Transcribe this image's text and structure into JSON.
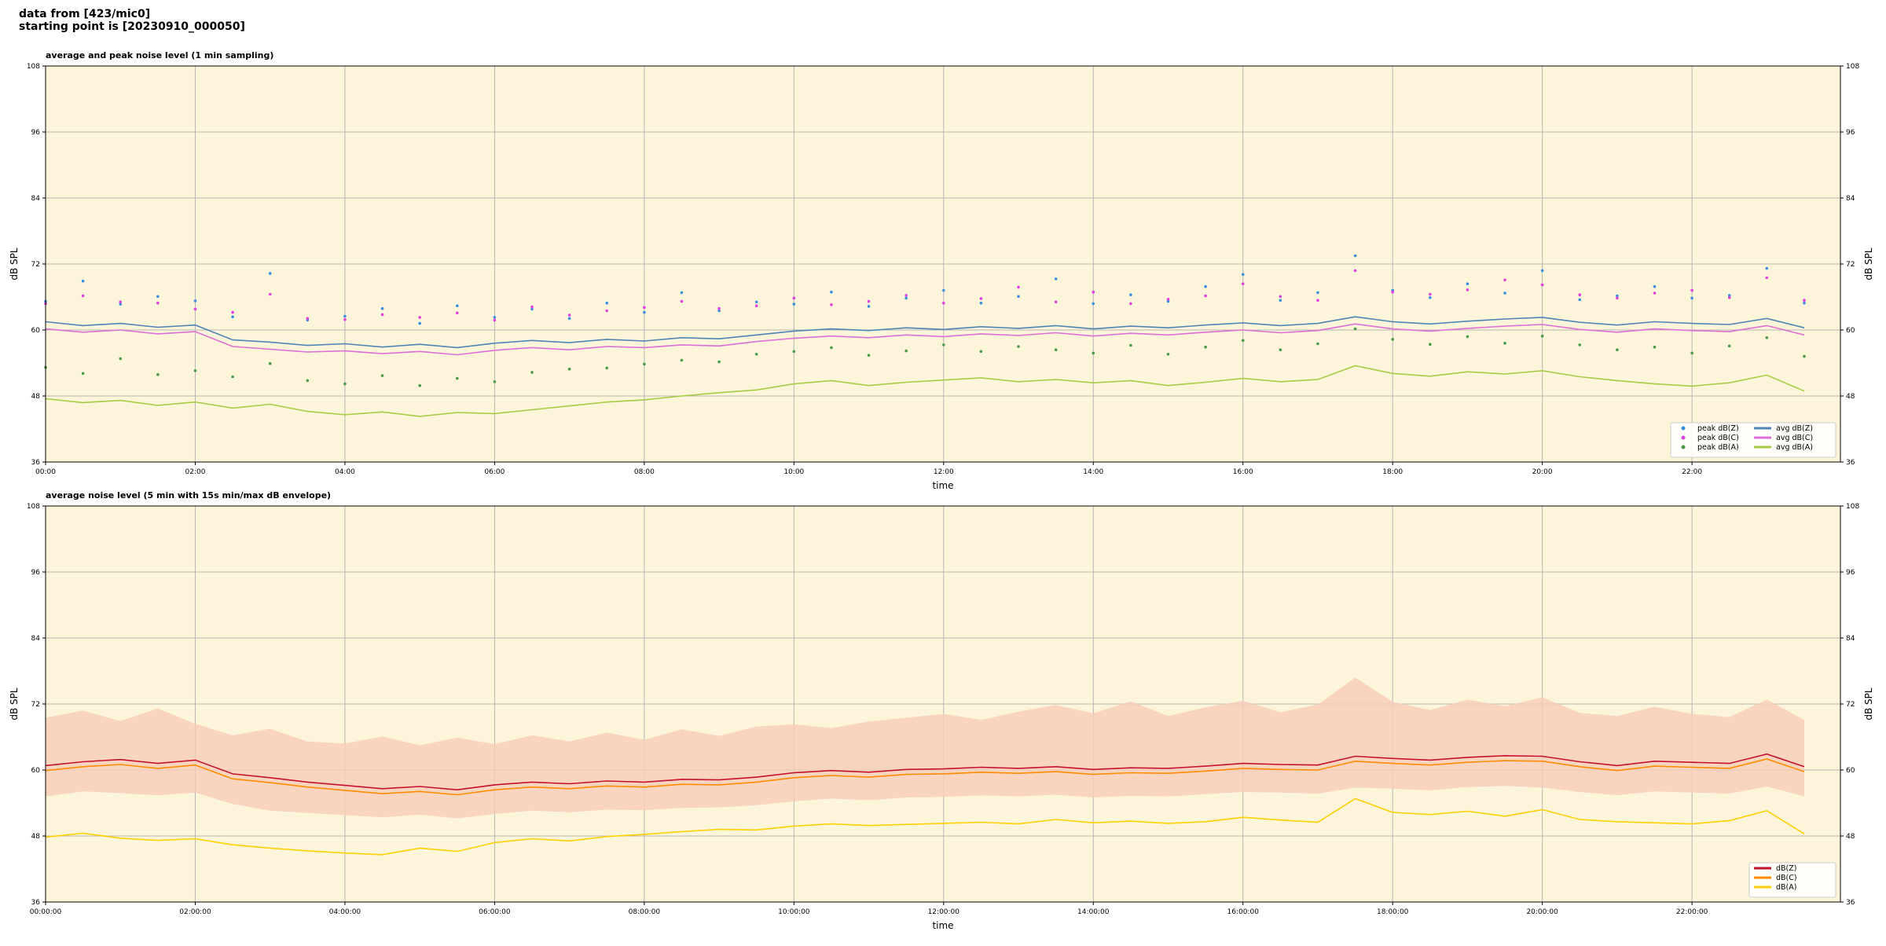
{
  "header": {
    "line1": "data from [423/mic0]",
    "line2": "starting point is [20230910_000050]"
  },
  "chart_data": [
    {
      "type": "line",
      "title": "average and peak noise level (1 min sampling)",
      "x_label": "time",
      "y_label": "dB SPL",
      "background": "#fdf5d9",
      "grid": true,
      "legend": "lower right",
      "legend_columns": 2,
      "xlim": [
        "00:00",
        "23:59"
      ],
      "ylim": [
        36,
        108
      ],
      "yticks": [
        36,
        48,
        60,
        72,
        84,
        96,
        108
      ],
      "xticks": [
        "00:00",
        "02:00",
        "04:00",
        "06:00",
        "08:00",
        "10:00",
        "12:00",
        "14:00",
        "16:00",
        "18:00",
        "20:00",
        "22:00"
      ],
      "x": [
        "00:00",
        "00:30",
        "01:00",
        "01:30",
        "02:00",
        "02:30",
        "03:00",
        "03:30",
        "04:00",
        "04:30",
        "05:00",
        "05:30",
        "06:00",
        "06:30",
        "07:00",
        "07:30",
        "08:00",
        "08:30",
        "09:00",
        "09:30",
        "10:00",
        "10:30",
        "11:00",
        "11:30",
        "12:00",
        "12:30",
        "13:00",
        "13:30",
        "14:00",
        "14:30",
        "15:00",
        "15:30",
        "16:00",
        "16:30",
        "17:00",
        "17:30",
        "18:00",
        "18:30",
        "19:00",
        "19:30",
        "20:00",
        "20:30",
        "21:00",
        "21:30",
        "22:00",
        "22:30",
        "23:00",
        "23:30"
      ],
      "series": [
        {
          "name": "peak dB(Z)",
          "style": "points",
          "color": "#3a8fe0",
          "values": [
            65.2,
            68.9,
            64.7,
            66.1,
            65.3,
            62.4,
            70.3,
            61.8,
            62.5,
            63.9,
            61.2,
            64.4,
            62.3,
            63.8,
            62.1,
            64.9,
            63.2,
            66.8,
            63.5,
            65.1,
            64.7,
            66.9,
            64.3,
            65.8,
            67.2,
            64.9,
            66.1,
            69.3,
            64.8,
            66.4,
            65.2,
            67.9,
            70.1,
            65.4,
            66.8,
            73.5,
            67.2,
            65.9,
            68.4,
            66.7,
            70.8,
            65.5,
            66.2,
            67.9,
            65.8,
            66.3,
            71.2,
            64.9
          ]
        },
        {
          "name": "peak dB(C)",
          "style": "points",
          "color": "#e040e0",
          "values": [
            64.8,
            66.2,
            65.1,
            64.9,
            63.8,
            63.2,
            66.5,
            62.1,
            61.9,
            62.8,
            62.3,
            63.1,
            61.8,
            64.2,
            62.7,
            63.5,
            64.1,
            65.2,
            63.9,
            64.4,
            65.8,
            64.6,
            65.2,
            66.3,
            64.9,
            65.7,
            67.8,
            65.1,
            66.9,
            64.8,
            65.6,
            66.2,
            68.4,
            66.1,
            65.4,
            70.8,
            66.9,
            66.5,
            67.3,
            69.1,
            68.2,
            66.4,
            65.8,
            66.7,
            67.2,
            65.9,
            69.5,
            65.4
          ]
        },
        {
          "name": "peak dB(A)",
          "style": "points",
          "color": "#4a9a4a",
          "values": [
            53.2,
            52.1,
            54.8,
            51.9,
            52.6,
            51.5,
            53.9,
            50.8,
            50.2,
            51.7,
            49.9,
            51.2,
            50.6,
            52.3,
            52.9,
            53.1,
            53.8,
            54.5,
            54.2,
            55.6,
            56.1,
            56.8,
            55.4,
            56.2,
            57.3,
            56.1,
            57.0,
            56.4,
            55.8,
            57.2,
            55.6,
            56.9,
            58.1,
            56.4,
            57.5,
            60.2,
            58.3,
            57.4,
            58.8,
            57.6,
            58.9,
            57.3,
            56.4,
            56.9,
            55.8,
            57.1,
            58.6,
            55.2
          ]
        },
        {
          "name": "avg dB(Z)",
          "style": "line",
          "color": "#4f84b5",
          "values": [
            61.5,
            60.8,
            61.2,
            60.5,
            60.9,
            58.2,
            57.8,
            57.2,
            57.5,
            56.9,
            57.4,
            56.8,
            57.6,
            58.1,
            57.7,
            58.3,
            58.0,
            58.6,
            58.4,
            59.1,
            59.8,
            60.2,
            59.9,
            60.4,
            60.1,
            60.6,
            60.3,
            60.8,
            60.2,
            60.7,
            60.4,
            60.9,
            61.3,
            60.8,
            61.2,
            62.4,
            61.5,
            61.1,
            61.6,
            62.0,
            62.3,
            61.4,
            60.9,
            61.5,
            61.2,
            61.0,
            62.1,
            60.4
          ]
        },
        {
          "name": "avg dB(C)",
          "style": "line",
          "color": "#de6fd6",
          "values": [
            60.2,
            59.6,
            60.0,
            59.3,
            59.7,
            57.0,
            56.5,
            56.0,
            56.2,
            55.7,
            56.1,
            55.5,
            56.3,
            56.8,
            56.4,
            57.0,
            56.8,
            57.3,
            57.1,
            57.9,
            58.5,
            58.9,
            58.6,
            59.1,
            58.8,
            59.3,
            59.0,
            59.5,
            58.9,
            59.4,
            59.1,
            59.6,
            60.0,
            59.5,
            59.9,
            61.1,
            60.2,
            59.8,
            60.3,
            60.7,
            61.0,
            60.1,
            59.6,
            60.2,
            59.9,
            59.7,
            60.8,
            59.1
          ]
        },
        {
          "name": "avg dB(A)",
          "style": "line",
          "color": "#a6cc45",
          "values": [
            47.5,
            46.8,
            47.2,
            46.3,
            46.9,
            45.8,
            46.5,
            45.2,
            44.6,
            45.1,
            44.3,
            45.0,
            44.8,
            45.5,
            46.2,
            46.9,
            47.3,
            48.0,
            48.6,
            49.1,
            50.2,
            50.8,
            49.9,
            50.5,
            50.9,
            51.3,
            50.6,
            51.0,
            50.4,
            50.8,
            49.9,
            50.5,
            51.2,
            50.6,
            51.0,
            53.5,
            52.1,
            51.6,
            52.4,
            52.0,
            52.6,
            51.5,
            50.8,
            50.2,
            49.8,
            50.4,
            51.8,
            48.9
          ]
        }
      ]
    },
    {
      "type": "line",
      "title": "average noise level (5 min with 15s min/max dB envelope)",
      "x_label": "time",
      "y_label": "dB SPL",
      "background": "#fdf5d9",
      "grid": true,
      "legend": "lower right",
      "legend_columns": 1,
      "xlim": [
        "00:00:00",
        "23:59:00"
      ],
      "ylim": [
        36,
        108
      ],
      "yticks": [
        36,
        48,
        60,
        72,
        84,
        96,
        108
      ],
      "xticks": [
        "00:00:00",
        "02:00:00",
        "04:00:00",
        "06:00:00",
        "08:00:00",
        "10:00:00",
        "12:00:00",
        "14:00:00",
        "16:00:00",
        "18:00:00",
        "20:00:00",
        "22:00:00"
      ],
      "x": [
        "00:00:00",
        "00:30:00",
        "01:00:00",
        "01:30:00",
        "02:00:00",
        "02:30:00",
        "03:00:00",
        "03:30:00",
        "04:00:00",
        "04:30:00",
        "05:00:00",
        "05:30:00",
        "06:00:00",
        "06:30:00",
        "07:00:00",
        "07:30:00",
        "08:00:00",
        "08:30:00",
        "09:00:00",
        "09:30:00",
        "10:00:00",
        "10:30:00",
        "11:00:00",
        "11:30:00",
        "12:00:00",
        "12:30:00",
        "13:00:00",
        "13:30:00",
        "14:00:00",
        "14:30:00",
        "15:00:00",
        "15:30:00",
        "16:00:00",
        "16:30:00",
        "17:00:00",
        "17:30:00",
        "18:00:00",
        "18:30:00",
        "19:00:00",
        "19:30:00",
        "20:00:00",
        "20:30:00",
        "21:00:00",
        "21:30:00",
        "22:00:00",
        "22:30:00",
        "23:00:00",
        "23:30:00"
      ],
      "envelope": {
        "color": "#f7cdb9",
        "high": [
          69.5,
          70.8,
          68.9,
          71.2,
          68.4,
          66.3,
          67.5,
          65.2,
          64.8,
          66.1,
          64.5,
          65.9,
          64.7,
          66.3,
          65.2,
          66.8,
          65.5,
          67.4,
          66.2,
          67.9,
          68.3,
          67.6,
          68.8,
          69.5,
          70.2,
          69.1,
          70.6,
          71.8,
          70.3,
          72.5,
          69.8,
          71.4,
          72.6,
          70.5,
          71.9,
          76.8,
          72.4,
          70.9,
          72.8,
          71.6,
          73.2,
          70.4,
          69.8,
          71.5,
          70.2,
          69.6,
          72.8,
          69.1
        ],
        "low": [
          55.2,
          56.1,
          55.8,
          55.4,
          55.9,
          53.8,
          52.6,
          52.2,
          51.8,
          51.4,
          51.9,
          51.2,
          52.0,
          52.6,
          52.3,
          52.8,
          52.7,
          53.1,
          53.2,
          53.6,
          54.3,
          54.8,
          54.5,
          55.0,
          55.1,
          55.4,
          55.2,
          55.5,
          55.0,
          55.3,
          55.2,
          55.6,
          56.0,
          55.9,
          55.7,
          56.8,
          56.6,
          56.3,
          56.9,
          57.1,
          56.8,
          56.0,
          55.4,
          56.1,
          55.9,
          55.7,
          57.0,
          55.2
        ]
      },
      "series": [
        {
          "name": "dB(Z)",
          "style": "line",
          "color": "#c8102e",
          "values": [
            60.8,
            61.5,
            61.9,
            61.2,
            61.8,
            59.3,
            58.6,
            57.8,
            57.2,
            56.6,
            57.0,
            56.4,
            57.3,
            57.8,
            57.5,
            58.0,
            57.8,
            58.3,
            58.2,
            58.7,
            59.5,
            59.9,
            59.6,
            60.1,
            60.2,
            60.5,
            60.3,
            60.6,
            60.1,
            60.4,
            60.3,
            60.7,
            61.2,
            61.0,
            60.9,
            62.5,
            62.1,
            61.8,
            62.3,
            62.6,
            62.5,
            61.5,
            60.8,
            61.6,
            61.4,
            61.2,
            62.9,
            60.6
          ]
        },
        {
          "name": "dB(C)",
          "style": "line",
          "color": "#ff8c00",
          "values": [
            59.9,
            60.6,
            61.0,
            60.3,
            60.9,
            58.4,
            57.7,
            56.9,
            56.3,
            55.7,
            56.1,
            55.5,
            56.4,
            56.9,
            56.6,
            57.1,
            56.9,
            57.4,
            57.3,
            57.8,
            58.6,
            59.0,
            58.7,
            59.2,
            59.3,
            59.6,
            59.4,
            59.7,
            59.2,
            59.5,
            59.4,
            59.8,
            60.3,
            60.1,
            60.0,
            61.6,
            61.2,
            60.9,
            61.4,
            61.7,
            61.6,
            60.6,
            59.9,
            60.7,
            60.5,
            60.3,
            62.0,
            59.7
          ]
        },
        {
          "name": "dB(A)",
          "style": "line",
          "color": "#ffd000",
          "values": [
            47.8,
            48.5,
            47.6,
            47.2,
            47.5,
            46.4,
            45.8,
            45.3,
            44.9,
            44.6,
            45.8,
            45.2,
            46.8,
            47.5,
            47.1,
            47.9,
            48.3,
            48.8,
            49.2,
            49.1,
            49.8,
            50.2,
            49.9,
            50.1,
            50.3,
            50.5,
            50.2,
            51.0,
            50.4,
            50.7,
            50.3,
            50.6,
            51.4,
            50.9,
            50.5,
            54.8,
            52.3,
            51.9,
            52.5,
            51.6,
            52.8,
            51.0,
            50.6,
            50.4,
            50.2,
            50.8,
            52.6,
            48.4
          ]
        }
      ]
    }
  ]
}
